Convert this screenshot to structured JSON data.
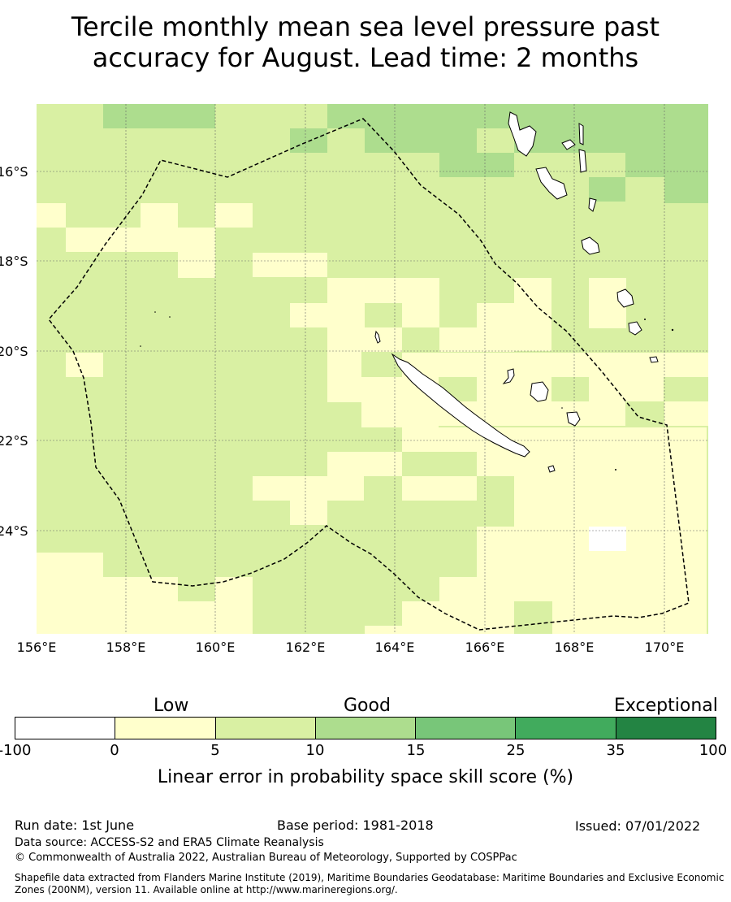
{
  "title": {
    "line1": "Tercile monthly mean sea level pressure past",
    "line2": "accuracy for August. Lead time: 2 months"
  },
  "map": {
    "lat_ticks": [
      "16°S",
      "18°S",
      "20°S",
      "22°S",
      "24°S"
    ],
    "lon_ticks": [
      "156°E",
      "158°E",
      "160°E",
      "162°E",
      "164°E",
      "166°E",
      "168°E",
      "170°E"
    ],
    "region": "Exclusive Economic Zone boundary (dashed)",
    "landmasses": [
      "New Caledonia",
      "Loyalty Islands",
      "Vanuatu"
    ]
  },
  "legend": {
    "categories": [
      "Low",
      "Good",
      "Exceptional"
    ],
    "ticks": [
      "-100",
      "0",
      "5",
      "10",
      "15",
      "25",
      "35",
      "100"
    ],
    "colors": [
      "#ffffff",
      "#ffffcc",
      "#d9f0a3",
      "#addd8e",
      "#78c679",
      "#41ab5d",
      "#238443"
    ],
    "label": "Linear error in probability space skill score (%)"
  },
  "footer": {
    "run_date": "Run date: 1st June",
    "base_period": "Base period: 1981-2018",
    "issued": "Issued: 07/01/2022",
    "data_source": "Data source: ACCESS-S2 and ERA5 Climate Reanalysis",
    "copyright": "© Commonwealth of Australia 2022, Australian Bureau of Meteorology, Supported by COSPPac",
    "shapefile": "Shapefile data extracted from Flanders Marine Institute (2019), Maritime Boundaries Geodatabase: Maritime Boundaries and Exclusive Economic Zones (200NM), version 11. Available online at http://www.marineregions.org/."
  }
}
